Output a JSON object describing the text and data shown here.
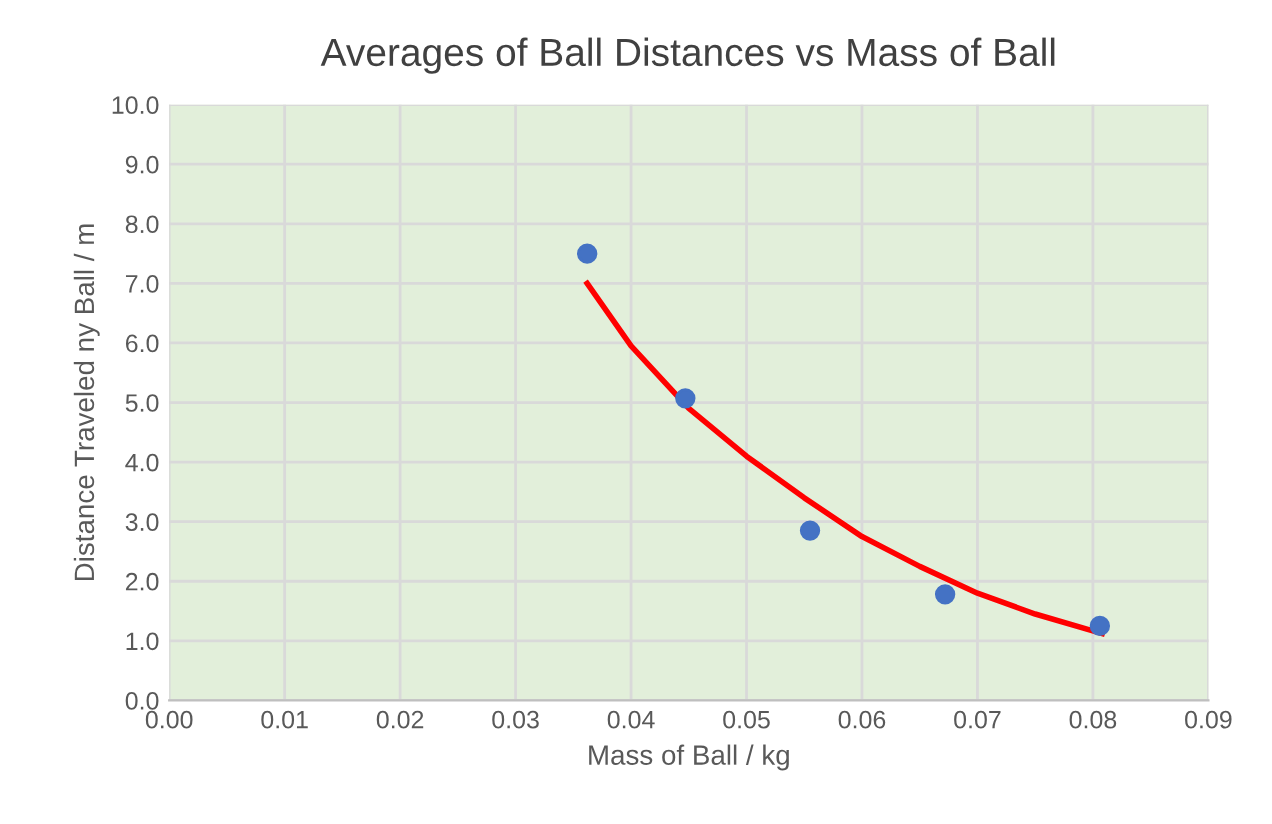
{
  "chart_data": {
    "type": "scatter",
    "title": "Averages of Ball Distances vs Mass of Ball",
    "xlabel": "Mass of Ball / kg",
    "ylabel": "Distance Traveled ny Ball / m",
    "series": [
      {
        "color": "#4472c4",
        "marker": "circle",
        "x": [
          0.0362,
          0.0447,
          0.0555,
          0.0672,
          0.0806
        ],
        "values": [
          7.5,
          5.07,
          2.85,
          1.78,
          1.25
        ]
      },
      {
        "type": "line",
        "color": "#ff0000",
        "marker": "none",
        "x": [
          0.0362,
          0.04,
          0.045,
          0.05,
          0.055,
          0.06,
          0.065,
          0.07,
          0.075,
          0.0808
        ],
        "values": [
          7.0,
          5.95,
          4.9,
          4.1,
          3.4,
          2.75,
          2.25,
          1.8,
          1.45,
          1.12
        ]
      }
    ],
    "xlim": [
      0,
      0.09
    ],
    "xticks": [
      {
        "value": 0,
        "label": "0.00"
      },
      {
        "value": 0.01,
        "label": "0.01"
      },
      {
        "value": 0.02,
        "label": "0.02"
      },
      {
        "value": 0.03,
        "label": "0.03"
      },
      {
        "value": 0.04,
        "label": "0.04"
      },
      {
        "value": 0.05,
        "label": "0.05"
      },
      {
        "value": 0.06,
        "label": "0.06"
      },
      {
        "value": 0.07,
        "label": "0.07"
      },
      {
        "value": 0.08,
        "label": "0.08"
      },
      {
        "value": 0.09,
        "label": "0.09"
      }
    ],
    "ylim": [
      0,
      10
    ],
    "yticks": [
      {
        "value": 0,
        "label": "0.0"
      },
      {
        "value": 1,
        "label": "1.0"
      },
      {
        "value": 2,
        "label": "2.0"
      },
      {
        "value": 3,
        "label": "3.0"
      },
      {
        "value": 4,
        "label": "4.0"
      },
      {
        "value": 5,
        "label": "5.0"
      },
      {
        "value": 6,
        "label": "6.0"
      },
      {
        "value": 7,
        "label": "7.0"
      },
      {
        "value": 8,
        "label": "8.0"
      },
      {
        "value": 9,
        "label": "9.0"
      },
      {
        "value": 10,
        "label": "10.0"
      }
    ],
    "grid": true,
    "legend": false
  }
}
